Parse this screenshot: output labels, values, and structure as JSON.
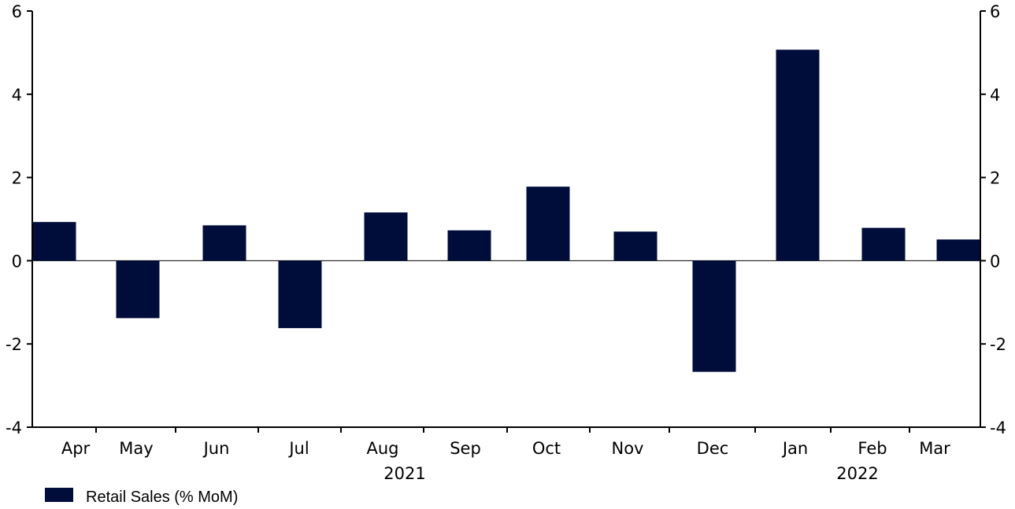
{
  "chart_data": {
    "type": "bar",
    "categories": [
      "Apr",
      "May",
      "Jun",
      "Jul",
      "Aug",
      "Sep",
      "Oct",
      "Nov",
      "Dec",
      "Jan",
      "Feb",
      "Mar"
    ],
    "years": [
      {
        "label": "2021",
        "category_index": 4
      },
      {
        "label": "2022",
        "category_index": 10
      }
    ],
    "series": [
      {
        "name": "Retail Sales (% MoM)",
        "color": "#000c3a",
        "values": [
          0.93,
          -1.38,
          0.85,
          -1.62,
          1.16,
          0.73,
          1.78,
          0.7,
          -2.67,
          5.07,
          0.79,
          0.51
        ]
      }
    ],
    "ylim": [
      -4,
      6
    ],
    "yticks": [
      -4,
      -2,
      0,
      2,
      4,
      6
    ],
    "ytick_labels": [
      "-4",
      "-2",
      "0",
      "2",
      "4",
      "6"
    ],
    "dual_y_axis": true,
    "grid": false,
    "legend_position": "bottom-left"
  }
}
